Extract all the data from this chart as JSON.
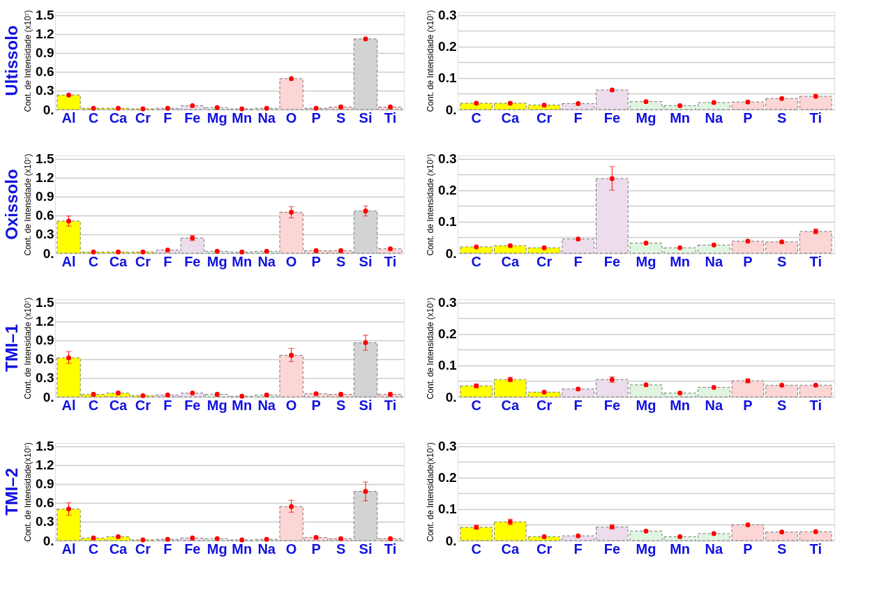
{
  "chart_data": [
    {
      "type": "bar",
      "title": "Ultissolo",
      "ylabel": "Cont. de Intensidade (x10⁷)",
      "grid": "y",
      "marker": "circle",
      "categories": [
        "Al",
        "C",
        "Ca",
        "Cr",
        "F",
        "Fe",
        "Mg",
        "Mn",
        "Na",
        "O",
        "P",
        "S",
        "Si",
        "Ti"
      ],
      "ylim": [
        0,
        1.55
      ],
      "yticks": [
        {
          "value": 0,
          "label": "0."
        },
        0.3,
        0.6,
        0.9,
        1.2,
        1.5
      ],
      "series": [
        {
          "type": "bar",
          "colors": [
            "#ffff00",
            "#ffff00",
            "#ffff00",
            "#ffff00",
            "#ecdcec",
            "#ecdcec",
            "#e0f5e0",
            "#e0f5e0",
            "#e0f5e0",
            "#fcd5d5",
            "#fcd5d5",
            "#fcd5d5",
            "#d3d3d3",
            "#fcd5d5"
          ],
          "values": [
            0.23,
            0.02,
            0.02,
            0.01,
            0.02,
            0.06,
            0.03,
            0.01,
            0.02,
            0.49,
            0.02,
            0.04,
            1.12,
            0.04
          ]
        },
        {
          "type": "scatter",
          "color": "#ff0000",
          "x": [
            "Al",
            "C",
            "Ca",
            "Cr",
            "F",
            "Fe",
            "Mg",
            "Mn",
            "Na",
            "O",
            "P",
            "S",
            "Si",
            "Ti"
          ],
          "values": [
            0.23,
            0.02,
            0.02,
            0.01,
            0.02,
            0.06,
            0.03,
            0.01,
            0.02,
            0.49,
            0.02,
            0.04,
            1.12,
            0.04
          ]
        }
      ]
    },
    {
      "type": "bar",
      "ylabel": "Cont. de Intensidade (x10⁷)",
      "grid": "y",
      "marker": "circle",
      "categories": [
        "C",
        "Ca",
        "Cr",
        "F",
        "Fe",
        "Mg",
        "Mn",
        "Na",
        "P",
        "S",
        "Ti"
      ],
      "ylim": [
        0,
        0.31
      ],
      "yticks": [
        {
          "value": 0,
          "label": "0."
        },
        {
          "value": 0.05,
          "label": null
        },
        0.1,
        {
          "value": 0.15,
          "label": null
        },
        0.2,
        {
          "value": 0.25,
          "label": null
        },
        0.3
      ],
      "series": [
        {
          "type": "bar",
          "colors": [
            "#ffff00",
            "#ffff00",
            "#ffff00",
            "#ecdcec",
            "#ecdcec",
            "#e0f5e0",
            "#e0f5e0",
            "#e0f5e0",
            "#fcd5d5",
            "#fcd5d5",
            "#fcd5d5"
          ],
          "values": [
            0.02,
            0.02,
            0.014,
            0.019,
            0.062,
            0.025,
            0.012,
            0.022,
            0.024,
            0.035,
            0.042
          ]
        },
        {
          "type": "scatter",
          "color": "#ff0000",
          "x": [
            "C",
            "Ca",
            "Cr",
            "F",
            "Fe",
            "Mg",
            "Mn",
            "Na",
            "P",
            "S",
            "Ti"
          ],
          "values": [
            0.02,
            0.02,
            0.014,
            0.019,
            0.062,
            0.025,
            0.012,
            0.022,
            0.024,
            0.035,
            0.042
          ]
        }
      ]
    },
    {
      "type": "bar",
      "title": "Oxissolo",
      "ylabel": "Cont. de Intensidade (x10⁷)",
      "grid": "y",
      "marker": "circle",
      "categories": [
        "Al",
        "C",
        "Ca",
        "Cr",
        "F",
        "Fe",
        "Mg",
        "Mn",
        "Na",
        "O",
        "P",
        "S",
        "Si",
        "Ti"
      ],
      "ylim": [
        0,
        1.55
      ],
      "yticks": [
        {
          "value": 0,
          "label": "0."
        },
        0.3,
        0.6,
        0.9,
        1.2,
        1.5
      ],
      "series": [
        {
          "type": "bar",
          "colors": [
            "#ffff00",
            "#ffff00",
            "#ffff00",
            "#ffff00",
            "#ecdcec",
            "#ecdcec",
            "#e0f5e0",
            "#e0f5e0",
            "#e0f5e0",
            "#fcd5d5",
            "#fcd5d5",
            "#fcd5d5",
            "#d3d3d3",
            "#fcd5d5"
          ],
          "values": [
            0.51,
            0.02,
            0.02,
            0.02,
            0.05,
            0.24,
            0.03,
            0.02,
            0.03,
            0.65,
            0.04,
            0.04,
            0.67,
            0.07
          ]
        },
        {
          "type": "scatter",
          "color": "#ff0000",
          "x": [
            "Al",
            "C",
            "Ca",
            "Cr",
            "F",
            "Fe",
            "Mg",
            "Mn",
            "Na",
            "O",
            "P",
            "S",
            "Si",
            "Ti"
          ],
          "values": [
            0.51,
            0.02,
            0.02,
            0.02,
            0.05,
            0.24,
            0.03,
            0.02,
            0.03,
            0.65,
            0.04,
            0.04,
            0.67,
            0.07
          ],
          "errors": [
            [
              0.43,
              0.59
            ],
            null,
            null,
            null,
            null,
            [
              0.2,
              0.28
            ],
            null,
            null,
            null,
            [
              0.56,
              0.74
            ],
            null,
            null,
            [
              0.59,
              0.75
            ],
            null
          ]
        }
      ]
    },
    {
      "type": "bar",
      "ylabel": "Cont. de Intensidade (x10⁷)",
      "grid": "y",
      "marker": "circle",
      "categories": [
        "C",
        "Ca",
        "Cr",
        "F",
        "Fe",
        "Mg",
        "Mn",
        "Na",
        "P",
        "S",
        "Ti"
      ],
      "ylim": [
        0,
        0.31
      ],
      "yticks": [
        {
          "value": 0,
          "label": "0."
        },
        {
          "value": 0.05,
          "label": null
        },
        0.1,
        {
          "value": 0.15,
          "label": null
        },
        0.2,
        {
          "value": 0.25,
          "label": null
        },
        0.3
      ],
      "series": [
        {
          "type": "bar",
          "colors": [
            "#ffff00",
            "#ffff00",
            "#ffff00",
            "#ecdcec",
            "#ecdcec",
            "#e0f5e0",
            "#e0f5e0",
            "#e0f5e0",
            "#fcd5d5",
            "#fcd5d5",
            "#fcd5d5"
          ],
          "values": [
            0.02,
            0.024,
            0.017,
            0.045,
            0.237,
            0.032,
            0.017,
            0.026,
            0.038,
            0.036,
            0.069
          ]
        },
        {
          "type": "scatter",
          "color": "#ff0000",
          "x": [
            "C",
            "Ca",
            "Cr",
            "F",
            "Fe",
            "Mg",
            "Mn",
            "Na",
            "P",
            "S",
            "Ti"
          ],
          "values": [
            0.02,
            0.024,
            0.017,
            0.045,
            0.237,
            0.032,
            0.017,
            0.026,
            0.038,
            0.036,
            0.069
          ],
          "errors": [
            null,
            null,
            null,
            null,
            [
              0.2,
              0.275
            ],
            null,
            null,
            null,
            null,
            null,
            [
              0.062,
              0.077
            ]
          ]
        }
      ]
    },
    {
      "type": "bar",
      "title": "TMI–1",
      "ylabel": "Cont. de Intensidade (x10⁷)",
      "grid": "y",
      "marker": "circle",
      "categories": [
        "Al",
        "C",
        "Ca",
        "Cr",
        "F",
        "Fe",
        "Mg",
        "Mn",
        "Na",
        "O",
        "P",
        "S",
        "Si",
        "Ti"
      ],
      "ylim": [
        0,
        1.55
      ],
      "yticks": [
        {
          "value": 0,
          "label": "0."
        },
        0.3,
        0.6,
        0.9,
        1.2,
        1.5
      ],
      "series": [
        {
          "type": "bar",
          "colors": [
            "#ffff00",
            "#ffff00",
            "#ffff00",
            "#ffff00",
            "#ecdcec",
            "#ecdcec",
            "#e0f5e0",
            "#e0f5e0",
            "#e0f5e0",
            "#fcd5d5",
            "#fcd5d5",
            "#fcd5d5",
            "#d3d3d3",
            "#fcd5d5"
          ],
          "values": [
            0.62,
            0.04,
            0.06,
            0.02,
            0.03,
            0.06,
            0.04,
            0.01,
            0.03,
            0.66,
            0.05,
            0.04,
            0.86,
            0.04
          ]
        },
        {
          "type": "scatter",
          "color": "#ff0000",
          "x": [
            "Al",
            "C",
            "Ca",
            "Cr",
            "F",
            "Fe",
            "Mg",
            "Mn",
            "Na",
            "O",
            "P",
            "S",
            "Si",
            "Ti"
          ],
          "values": [
            0.62,
            0.04,
            0.06,
            0.02,
            0.03,
            0.06,
            0.04,
            0.01,
            0.03,
            0.66,
            0.05,
            0.04,
            0.86,
            0.04
          ],
          "errors": [
            [
              0.53,
              0.72
            ],
            null,
            null,
            null,
            null,
            null,
            null,
            null,
            null,
            [
              0.56,
              0.77
            ],
            null,
            null,
            [
              0.74,
              0.98
            ],
            null
          ]
        }
      ]
    },
    {
      "type": "bar",
      "ylabel": "Cont. de Intensidade (x10⁷)",
      "grid": "y",
      "marker": "circle",
      "categories": [
        "C",
        "Ca",
        "Cr",
        "F",
        "Fe",
        "Mg",
        "Mn",
        "Na",
        "P",
        "S",
        "Ti"
      ],
      "ylim": [
        0,
        0.31
      ],
      "yticks": [
        {
          "value": 0,
          "label": "0."
        },
        {
          "value": 0.05,
          "label": null
        },
        0.1,
        {
          "value": 0.15,
          "label": null
        },
        0.2,
        {
          "value": 0.25,
          "label": null
        },
        0.3
      ],
      "series": [
        {
          "type": "bar",
          "colors": [
            "#ffff00",
            "#ffff00",
            "#ffff00",
            "#ecdcec",
            "#ecdcec",
            "#e0f5e0",
            "#e0f5e0",
            "#e0f5e0",
            "#fcd5d5",
            "#fcd5d5",
            "#fcd5d5"
          ],
          "values": [
            0.035,
            0.055,
            0.015,
            0.025,
            0.055,
            0.038,
            0.012,
            0.03,
            0.051,
            0.037,
            0.037
          ]
        },
        {
          "type": "scatter",
          "color": "#ff0000",
          "x": [
            "C",
            "Ca",
            "Cr",
            "F",
            "Fe",
            "Mg",
            "Mn",
            "Na",
            "P",
            "S",
            "Ti"
          ],
          "values": [
            0.035,
            0.055,
            0.015,
            0.025,
            0.055,
            0.038,
            0.012,
            0.03,
            0.051,
            0.037,
            0.037
          ],
          "errors": [
            [
              0.029,
              0.041
            ],
            [
              0.049,
              0.062
            ],
            null,
            null,
            [
              0.046,
              0.064
            ],
            null,
            null,
            null,
            [
              0.045,
              0.057
            ],
            null,
            null
          ]
        }
      ]
    },
    {
      "type": "bar",
      "title": "TMI–2",
      "ylabel": "Cont. de Intensidade(x10⁷)",
      "grid": "y",
      "marker": "circle",
      "categories": [
        "Al",
        "C",
        "Ca",
        "Cr",
        "F",
        "Fe",
        "Mg",
        "Mn",
        "Na",
        "O",
        "P",
        "S",
        "Si",
        "Ti"
      ],
      "ylim": [
        0,
        1.55
      ],
      "yticks": [
        {
          "value": 0,
          "label": "0."
        },
        0.3,
        0.6,
        0.9,
        1.2,
        1.5
      ],
      "series": [
        {
          "type": "bar",
          "colors": [
            "#ffff00",
            "#ffff00",
            "#ffff00",
            "#ffff00",
            "#ecdcec",
            "#ecdcec",
            "#e0f5e0",
            "#e0f5e0",
            "#e0f5e0",
            "#fcd5d5",
            "#fcd5d5",
            "#fcd5d5",
            "#d3d3d3",
            "#fcd5d5"
          ],
          "values": [
            0.5,
            0.04,
            0.06,
            0.01,
            0.02,
            0.04,
            0.03,
            0.01,
            0.02,
            0.54,
            0.05,
            0.03,
            0.78,
            0.03
          ]
        },
        {
          "type": "scatter",
          "color": "#ff0000",
          "x": [
            "Al",
            "C",
            "Ca",
            "Cr",
            "F",
            "Fe",
            "Mg",
            "Mn",
            "Na",
            "O",
            "P",
            "S",
            "Si",
            "Ti"
          ],
          "values": [
            0.5,
            0.04,
            0.06,
            0.01,
            0.02,
            0.04,
            0.03,
            0.01,
            0.02,
            0.54,
            0.05,
            0.03,
            0.78,
            0.03
          ],
          "errors": [
            [
              0.4,
              0.6
            ],
            null,
            null,
            null,
            null,
            null,
            null,
            null,
            null,
            [
              0.45,
              0.64
            ],
            null,
            null,
            [
              0.63,
              0.93
            ],
            null
          ]
        }
      ]
    },
    {
      "type": "bar",
      "ylabel": "Cont. de Intensidade(x10⁷)",
      "grid": "y",
      "marker": "circle",
      "categories": [
        "C",
        "Ca",
        "Cr",
        "F",
        "Fe",
        "Mg",
        "Mn",
        "Na",
        "P",
        "S",
        "Ti"
      ],
      "ylim": [
        0,
        0.31
      ],
      "yticks": [
        {
          "value": 0,
          "label": "0."
        },
        {
          "value": 0.05,
          "label": null
        },
        0.1,
        {
          "value": 0.15,
          "label": null
        },
        0.2,
        {
          "value": 0.25,
          "label": null
        },
        0.3
      ],
      "series": [
        {
          "type": "bar",
          "colors": [
            "#ffff00",
            "#ffff00",
            "#ffff00",
            "#ecdcec",
            "#ecdcec",
            "#e0f5e0",
            "#e0f5e0",
            "#e0f5e0",
            "#fcd5d5",
            "#fcd5d5",
            "#fcd5d5"
          ],
          "values": [
            0.042,
            0.059,
            0.012,
            0.015,
            0.043,
            0.03,
            0.012,
            0.022,
            0.05,
            0.027,
            0.028
          ]
        },
        {
          "type": "scatter",
          "color": "#ff0000",
          "x": [
            "C",
            "Ca",
            "Cr",
            "F",
            "Fe",
            "Mg",
            "Mn",
            "Na",
            "P",
            "S",
            "Ti"
          ],
          "values": [
            0.042,
            0.059,
            0.012,
            0.015,
            0.043,
            0.03,
            0.012,
            0.022,
            0.05,
            0.027,
            0.028
          ],
          "errors": [
            [
              0.036,
              0.048
            ],
            [
              0.05,
              0.068
            ],
            null,
            null,
            [
              0.037,
              0.05
            ],
            null,
            null,
            null,
            null,
            null,
            null
          ]
        }
      ]
    }
  ]
}
